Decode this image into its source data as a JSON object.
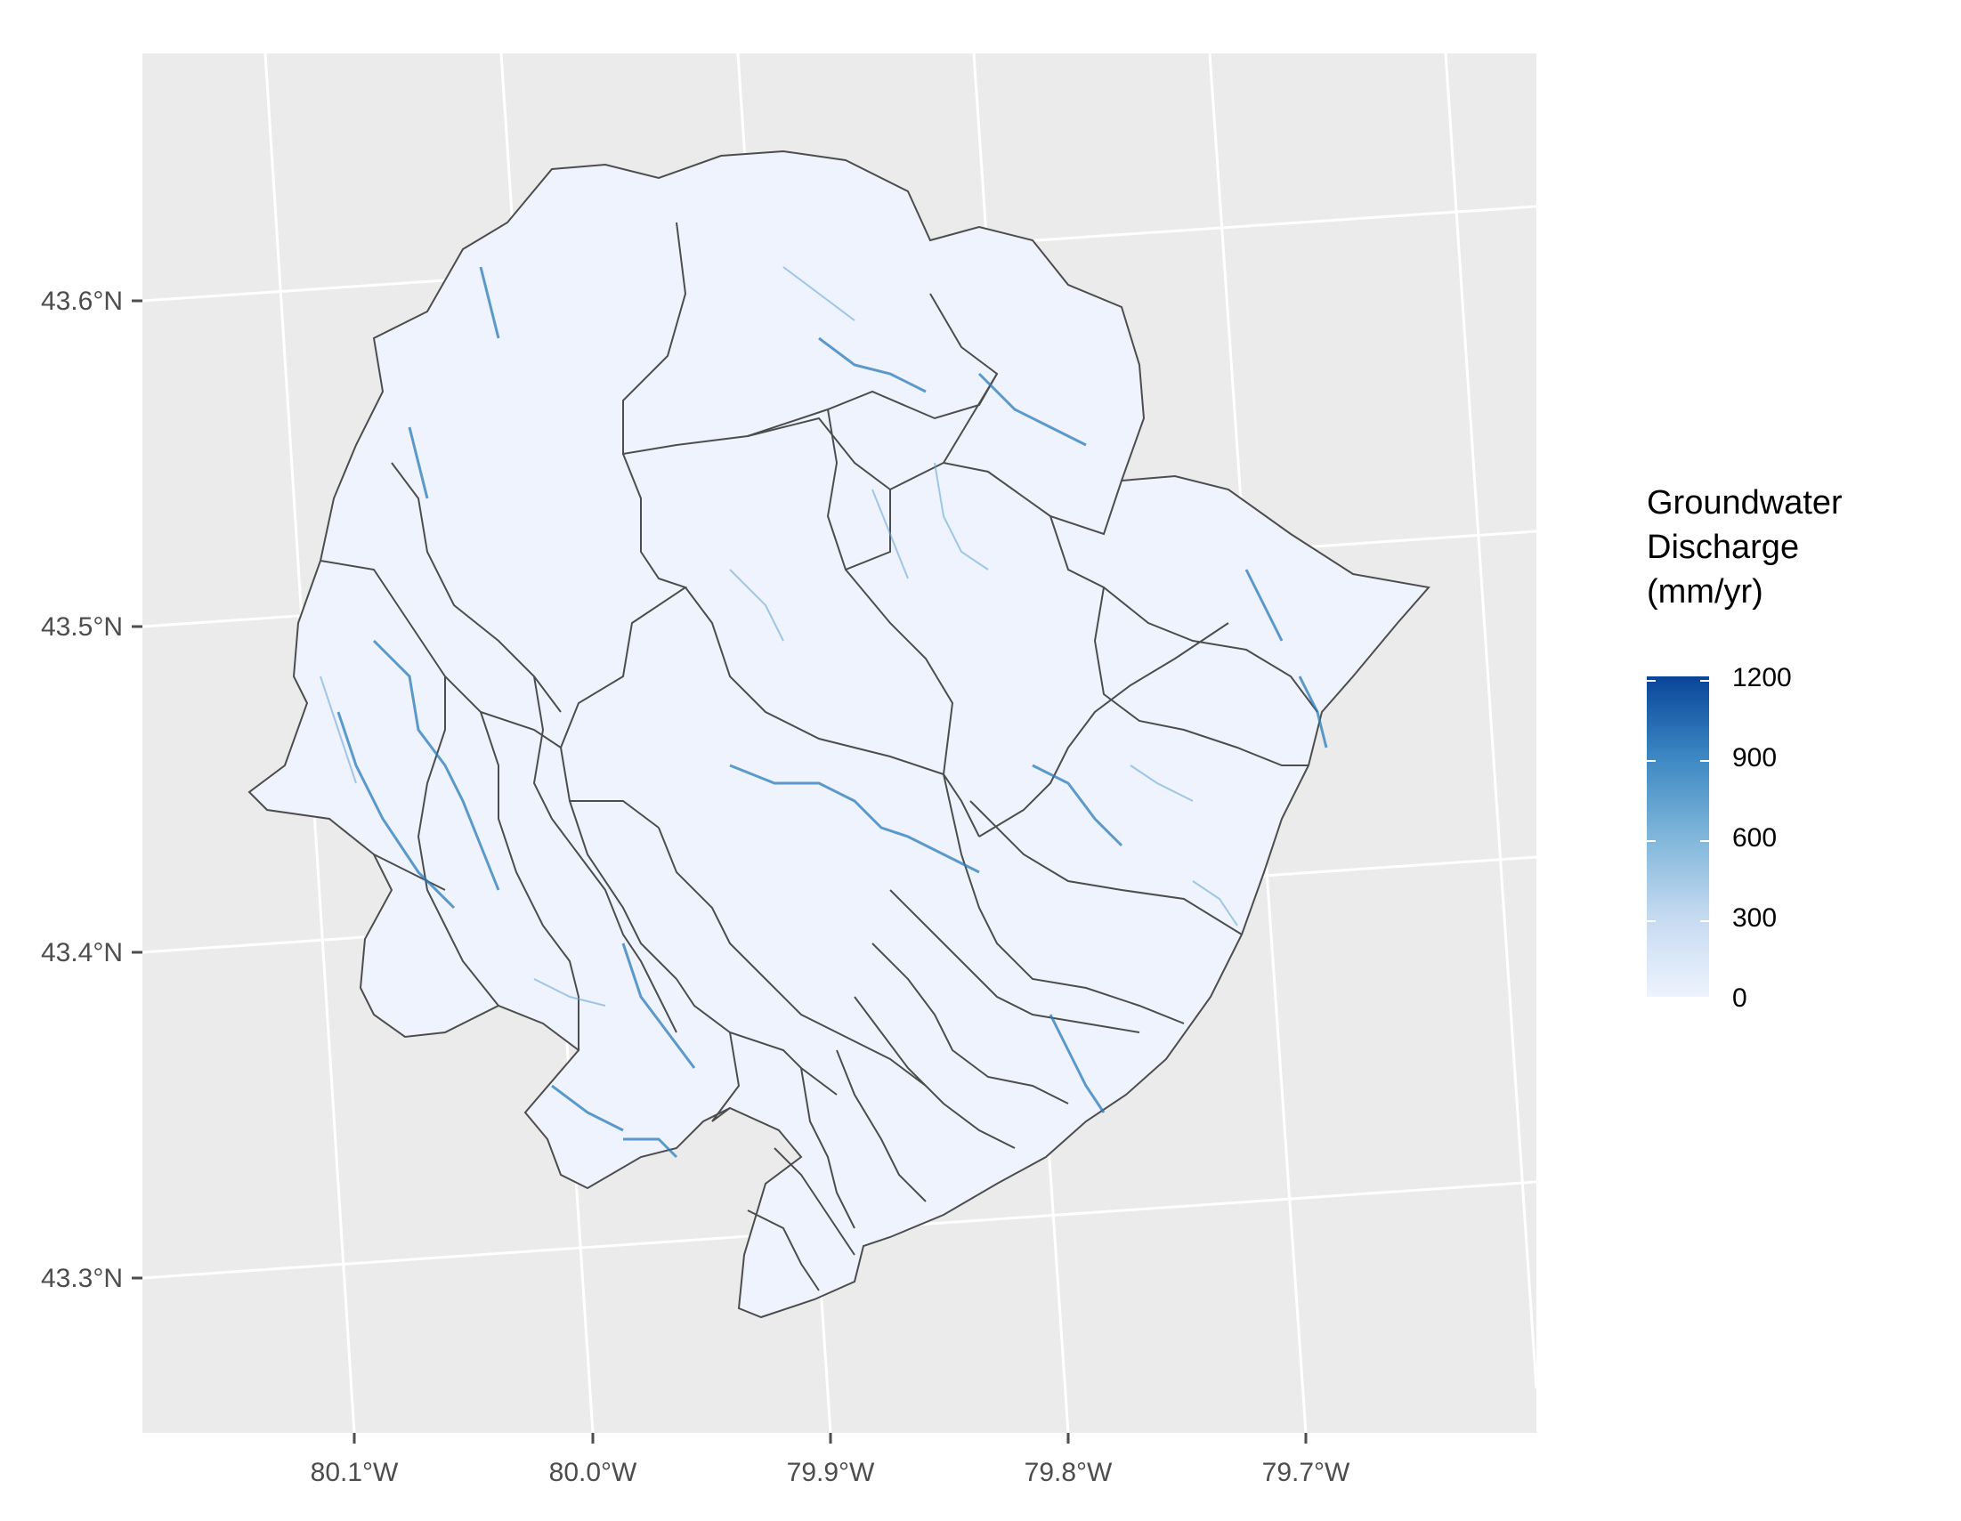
{
  "map": {
    "lat_labels": [
      "43.6°N",
      "43.5°N",
      "43.4°N",
      "43.3°N"
    ],
    "lon_labels": [
      "80.1°W",
      "80.0°W",
      "79.9°W",
      "79.8°W",
      "79.7°W"
    ],
    "panel_background": "#ebebeb",
    "gridline_color": "#ffffff",
    "fill_color": "#eef3fd",
    "boundary_color": "#4d4d4d",
    "stream_color": "#2b7bba"
  },
  "legend": {
    "title_line1": "Groundwater",
    "title_line2": "Discharge",
    "title_line3": "(mm/yr)",
    "labels": [
      "1200",
      "900",
      "600",
      "300",
      "0"
    ],
    "low_color": "#eef3fd",
    "high_color": "#08459a"
  }
}
